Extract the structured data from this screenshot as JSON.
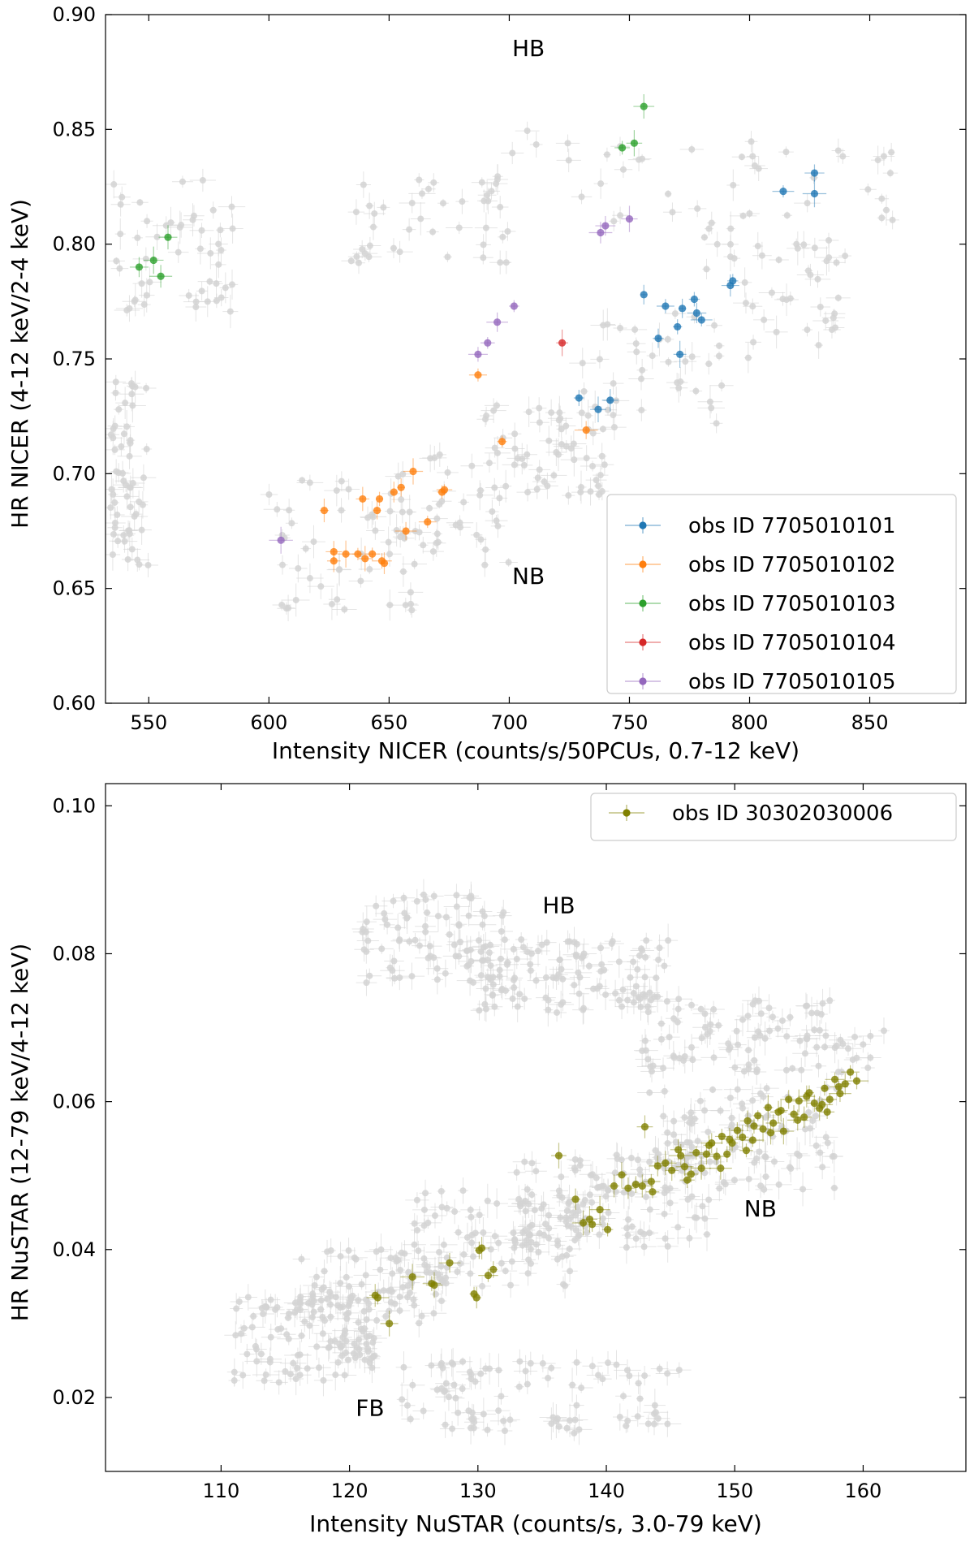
{
  "chart_data": [
    {
      "type": "scatter",
      "xlabel": "Intensity NICER (counts/s/50PCUs, 0.7-12 keV)",
      "ylabel": "HR NICER (4-12 keV/2-4 keV)",
      "xlim": [
        532,
        890
      ],
      "ylim": [
        0.6,
        0.9
      ],
      "xticks": [
        550,
        600,
        650,
        700,
        750,
        800,
        850
      ],
      "yticks": [
        0.6,
        0.65,
        0.7,
        0.75,
        0.8,
        0.85,
        0.9
      ],
      "ytick_decimals": 2,
      "legend_position": "lower-right",
      "annotations": [
        {
          "text": "HB",
          "x": 708,
          "y": 0.882
        },
        {
          "text": "NB",
          "x": 708,
          "y": 0.652
        }
      ],
      "background_color": "#d3d3d3",
      "background_seed": 11,
      "background_points": 420,
      "background_regions": [
        {
          "x": [
            535,
            585
          ],
          "y": [
            0.77,
            0.83
          ]
        },
        {
          "x": [
            534,
            550
          ],
          "y": [
            0.66,
            0.74
          ]
        },
        {
          "x": [
            600,
            660
          ],
          "y": [
            0.64,
            0.7
          ]
        },
        {
          "x": [
            650,
            700
          ],
          "y": [
            0.66,
            0.71
          ]
        },
        {
          "x": [
            690,
            740
          ],
          "y": [
            0.69,
            0.73
          ]
        },
        {
          "x": [
            730,
            790
          ],
          "y": [
            0.72,
            0.77
          ]
        },
        {
          "x": [
            780,
            840
          ],
          "y": [
            0.75,
            0.81
          ]
        },
        {
          "x": [
            700,
            870
          ],
          "y": [
            0.81,
            0.85
          ]
        },
        {
          "x": [
            630,
            700
          ],
          "y": [
            0.79,
            0.83
          ]
        }
      ],
      "series": [
        {
          "name": "obs ID 7705010101",
          "color": "#1f77b4",
          "x": [
            729,
            737,
            742,
            756,
            762,
            765,
            770,
            771,
            772,
            777,
            778,
            780,
            792,
            793,
            814,
            827,
            827
          ],
          "y": [
            0.733,
            0.728,
            0.732,
            0.778,
            0.759,
            0.773,
            0.764,
            0.752,
            0.772,
            0.776,
            0.77,
            0.767,
            0.782,
            0.784,
            0.823,
            0.822,
            0.831
          ]
        },
        {
          "name": "obs ID 7705010102",
          "color": "#ff7f0e",
          "x": [
            623,
            627,
            627,
            632,
            637,
            639,
            640,
            643,
            645,
            646,
            647,
            648,
            652,
            655,
            657,
            660,
            666,
            672,
            673,
            687,
            697,
            732
          ],
          "y": [
            0.684,
            0.666,
            0.662,
            0.665,
            0.665,
            0.689,
            0.663,
            0.665,
            0.684,
            0.689,
            0.662,
            0.661,
            0.692,
            0.694,
            0.675,
            0.701,
            0.679,
            0.692,
            0.693,
            0.743,
            0.714,
            0.719
          ]
        },
        {
          "name": "obs ID 7705010103",
          "color": "#2ca02c",
          "x": [
            546,
            552,
            555,
            558,
            747,
            752,
            756
          ],
          "y": [
            0.79,
            0.793,
            0.786,
            0.803,
            0.842,
            0.844,
            0.86
          ]
        },
        {
          "name": "obs ID 7705010104",
          "color": "#d62728",
          "x": [
            722
          ],
          "y": [
            0.757
          ]
        },
        {
          "name": "obs ID 7705010105",
          "color": "#9467bd",
          "x": [
            605,
            687,
            691,
            695,
            702,
            738,
            740,
            750
          ],
          "y": [
            0.671,
            0.752,
            0.757,
            0.766,
            0.773,
            0.805,
            0.808,
            0.811
          ]
        }
      ]
    },
    {
      "type": "scatter",
      "xlabel": "Intensity NuSTAR (counts/s, 3.0-79 keV)",
      "ylabel": "HR NuSTAR (12-79 keV/4-12 keV)",
      "xlim": [
        101,
        168
      ],
      "ylim": [
        0.01,
        0.103
      ],
      "xticks": [
        110,
        120,
        130,
        140,
        150,
        160
      ],
      "yticks": [
        0.02,
        0.04,
        0.06,
        0.08,
        0.1
      ],
      "ytick_decimals": 2,
      "legend_position": "upper-right",
      "annotations": [
        {
          "text": "HB",
          "x": 136.3,
          "y": 0.0855
        },
        {
          "text": "NB",
          "x": 152.0,
          "y": 0.0445
        },
        {
          "text": "FB",
          "x": 121.6,
          "y": 0.0175
        }
      ],
      "background_color": "#d3d3d3",
      "background_seed": 29,
      "background_points": 900,
      "background_regions": [
        {
          "x": [
            111,
            122
          ],
          "y": [
            0.022,
            0.034
          ]
        },
        {
          "x": [
            116,
            128
          ],
          "y": [
            0.03,
            0.04
          ]
        },
        {
          "x": [
            125,
            138
          ],
          "y": [
            0.035,
            0.048
          ]
        },
        {
          "x": [
            133,
            148
          ],
          "y": [
            0.04,
            0.053
          ]
        },
        {
          "x": [
            143,
            158
          ],
          "y": [
            0.048,
            0.062
          ]
        },
        {
          "x": [
            121,
            132
          ],
          "y": [
            0.076,
            0.088
          ]
        },
        {
          "x": [
            130,
            145
          ],
          "y": [
            0.072,
            0.082
          ]
        },
        {
          "x": [
            142,
            162
          ],
          "y": [
            0.064,
            0.074
          ]
        },
        {
          "x": [
            124,
            146
          ],
          "y": [
            0.015,
            0.025
          ]
        }
      ],
      "series": [
        {
          "name": "obs ID 30302030006",
          "color": "#808000",
          "x": [
            122.0,
            122.2,
            123.1,
            124.9,
            126.4,
            126.6,
            127.8,
            129.7,
            129.9,
            130.1,
            130.3,
            130.8,
            131.2,
            136.3,
            137.6,
            138.2,
            138.7,
            138.9,
            139.5,
            140.1,
            140.6,
            141.2,
            141.7,
            142.3,
            142.8,
            143.0,
            143.5,
            144.0,
            144.6,
            145.1,
            145.6,
            146.1,
            146.6,
            147.0,
            147.4,
            147.8,
            148.2,
            148.6,
            149.0,
            149.4,
            149.8,
            150.2,
            150.6,
            151.0,
            151.4,
            151.8,
            152.2,
            152.6,
            153.0,
            153.4,
            153.8,
            154.2,
            154.6,
            155.0,
            155.4,
            155.8,
            156.2,
            156.6,
            157.0,
            157.4,
            157.8,
            158.2,
            158.6,
            159.0,
            159.5,
            143.6,
            146.3,
            148.9,
            150.9,
            152.8,
            154.9,
            156.8,
            158.1,
            148.0,
            151.5,
            153.6,
            155.6,
            157.2,
            145.8,
            149.6
          ],
          "y": [
            0.0338,
            0.0335,
            0.03,
            0.0363,
            0.0354,
            0.0352,
            0.0382,
            0.034,
            0.0335,
            0.0399,
            0.0402,
            0.0365,
            0.0373,
            0.0527,
            0.0468,
            0.0436,
            0.0441,
            0.0434,
            0.0454,
            0.0427,
            0.0486,
            0.0501,
            0.0483,
            0.0488,
            0.0486,
            0.0566,
            0.0492,
            0.0513,
            0.0517,
            0.0507,
            0.0535,
            0.0512,
            0.0502,
            0.0531,
            0.051,
            0.0529,
            0.0544,
            0.0526,
            0.0553,
            0.0529,
            0.0544,
            0.0561,
            0.0552,
            0.0574,
            0.0548,
            0.0581,
            0.0563,
            0.0592,
            0.0571,
            0.0586,
            0.056,
            0.0603,
            0.0583,
            0.0601,
            0.0579,
            0.0612,
            0.0598,
            0.0591,
            0.0618,
            0.0603,
            0.063,
            0.0611,
            0.0624,
            0.064,
            0.0628,
            0.0478,
            0.0494,
            0.051,
            0.0534,
            0.0558,
            0.0575,
            0.0596,
            0.062,
            0.0541,
            0.0567,
            0.0588,
            0.0607,
            0.0586,
            0.0527,
            0.0549
          ]
        }
      ]
    }
  ]
}
